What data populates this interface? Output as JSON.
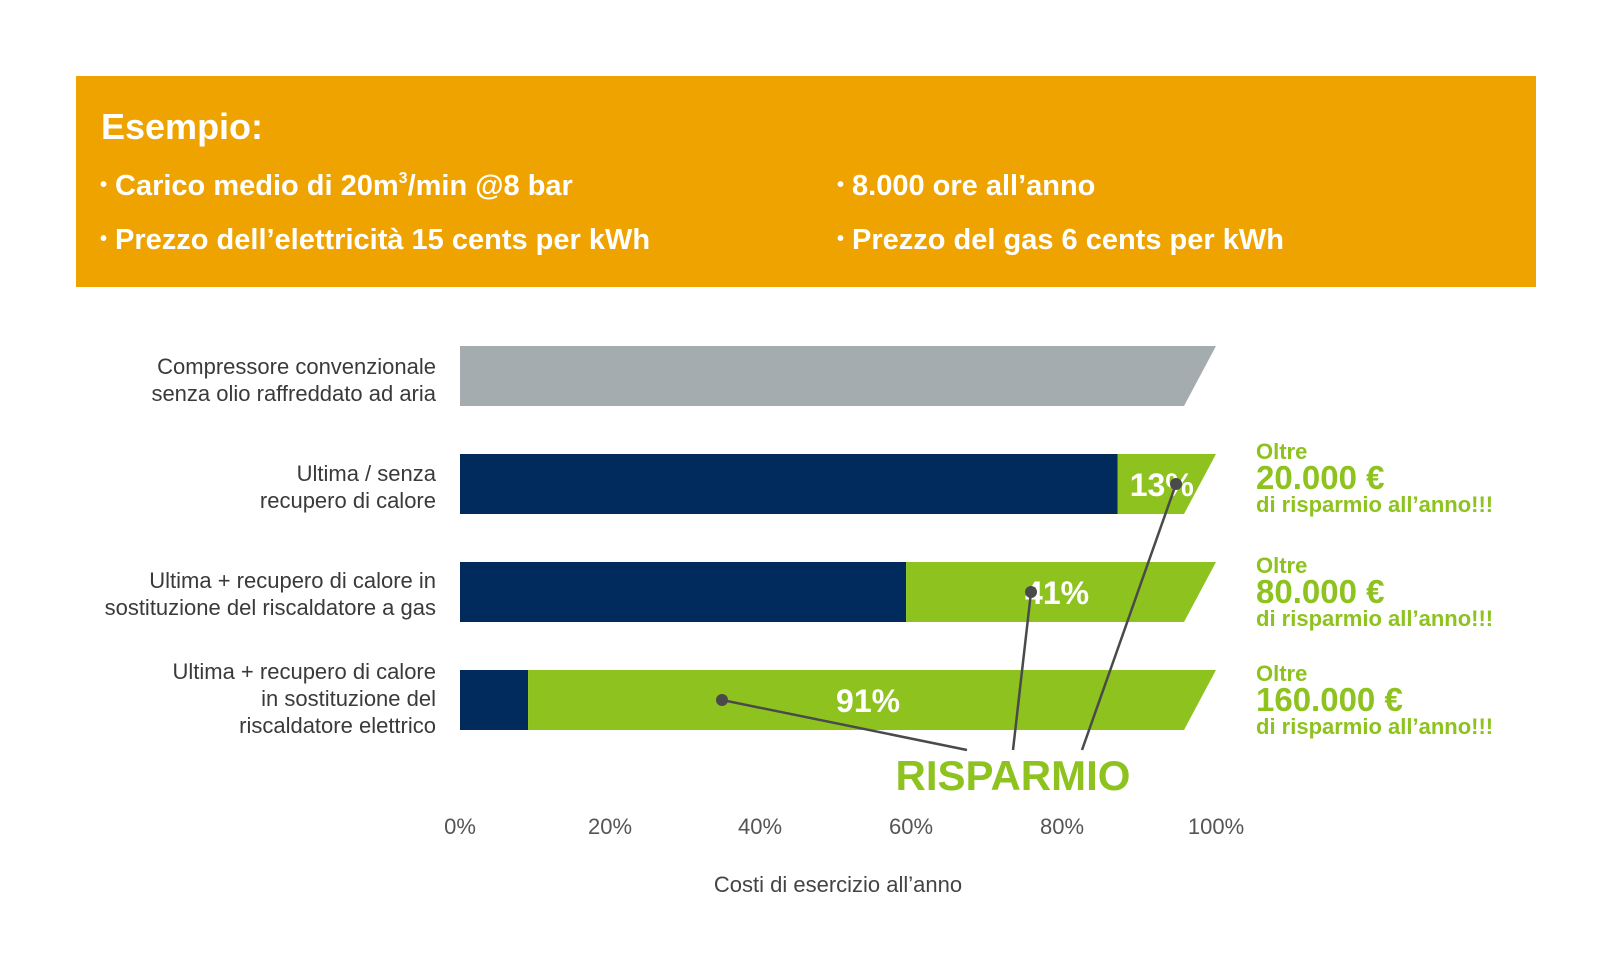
{
  "banner": {
    "title": "Esempio:",
    "bullets": [
      {
        "pre": "Carico medio di 20m",
        "sup": "3",
        "post": "/min @8 bar"
      },
      {
        "pre": "Prezzo dell’elettricità 15 cents per kWh",
        "sup": "",
        "post": ""
      },
      {
        "pre": "8.000 ore all’anno",
        "sup": "",
        "post": ""
      },
      {
        "pre": "Prezzo del gas 6 cents per kWh",
        "sup": "",
        "post": ""
      }
    ],
    "bullet_char": "•"
  },
  "colors": {
    "banner": "#EEA300",
    "baseline_bar": "#A5ACAF",
    "cost": "#002B5C",
    "saving": "#8DC21F",
    "pointer": "#4A4A4A"
  },
  "chart_data": {
    "type": "bar",
    "orientation": "horizontal",
    "stacked": true,
    "categories": [
      [
        "Compressore convenzionale",
        "senza olio raffreddato ad aria"
      ],
      [
        "Ultima / senza",
        "recupero di calore"
      ],
      [
        "Ultima + recupero di calore in",
        "sostituzione del riscaldatore a gas"
      ],
      [
        "Ultima + recupero di calore",
        "in sostituzione del",
        "riscaldatore elettrico"
      ]
    ],
    "series": [
      {
        "role": "baseline",
        "values": [
          100,
          0,
          0,
          0
        ]
      },
      {
        "role": "cost",
        "values": [
          0,
          87,
          59,
          9
        ]
      },
      {
        "role": "saving",
        "values": [
          0,
          13,
          41,
          91
        ]
      }
    ],
    "data_labels": [
      "",
      "13%",
      "41%",
      "91%"
    ],
    "annotations": [
      null,
      {
        "l1": "Oltre",
        "l2": "20.000 €",
        "l3": "di risparmio all’anno!!!"
      },
      {
        "l1": "Oltre",
        "l2": "80.000 €",
        "l3": "di risparmio all’anno!!!"
      },
      {
        "l1": "Oltre",
        "l2": "160.000 €",
        "l3": "di risparmio all’anno!!!"
      }
    ],
    "callout": "RISPARMIO",
    "xticks": [
      "0%",
      "20%",
      "40%",
      "60%",
      "80%",
      "100%"
    ],
    "xlim": [
      0,
      100
    ],
    "xlabel": "Costi di esercizio all’anno"
  }
}
